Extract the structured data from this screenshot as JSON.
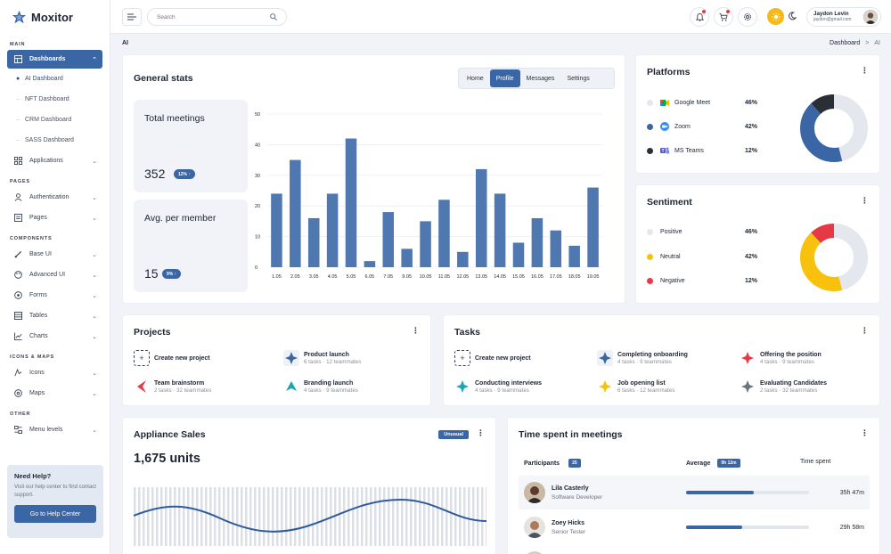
{
  "app": {
    "name": "Moxitor"
  },
  "sidebar": {
    "sections": {
      "main": "MAIN",
      "pages": "PAGES",
      "components": "COMPONENTS",
      "icons_maps": "ICONS & MAPS",
      "other": "OTHER"
    },
    "dashboards": "Dashboards",
    "sub": [
      "AI Dashboard",
      "NFT Dashboard",
      "CRM Dashboard",
      "SASS Dashboard"
    ],
    "applications": "Applications",
    "authentication": "Authentication",
    "pages": "Pages",
    "base_ui": "Base UI",
    "advanced_ui": "Advanced UI",
    "forms": "Forms",
    "tables": "Tables",
    "charts": "Charts",
    "icons": "Icons",
    "maps": "Maps",
    "menu_levels": "Menu levels",
    "help": {
      "title": "Need Help?",
      "text": "Visit our help center to find contact support.",
      "button": "Go to Help Center"
    }
  },
  "topbar": {
    "search_placeholder": "Search",
    "user_name": "Jaydon Levin",
    "user_email": "jaydon@gmail.com"
  },
  "breadcrumb": {
    "page": "AI",
    "parent": "Dashboard",
    "sep": ">",
    "current": "AI"
  },
  "general_stats": {
    "title": "General stats",
    "tabs": [
      "Home",
      "Profile",
      "Messages",
      "Settings"
    ],
    "active_tab": "Profile",
    "total_meetings_label": "Total meetings",
    "total_meetings_value": "352",
    "total_meetings_badge": "12% ↑",
    "avg_label": "Avg. per member",
    "avg_value": "15",
    "avg_badge": "9% ↑"
  },
  "chart_data": {
    "type": "bar",
    "categories": [
      "1.05",
      "2.05",
      "3.05",
      "4.05",
      "5.05",
      "6.05",
      "7.05",
      "9.05",
      "10.05",
      "11.05",
      "12.05",
      "13.05",
      "14.05",
      "15.05",
      "16.05",
      "17.05",
      "18.05",
      "19.05"
    ],
    "values": [
      24,
      35,
      16,
      24,
      42,
      2,
      18,
      6,
      15,
      22,
      5,
      32,
      24,
      8,
      16,
      12,
      7,
      26
    ],
    "yticks": [
      0,
      10,
      20,
      30,
      40,
      50
    ],
    "ylim": [
      0,
      50
    ],
    "color": "#4f78b0",
    "grid": true
  },
  "platforms": {
    "title": "Platforms",
    "items": [
      {
        "name": "Google Meet",
        "pct": "46%",
        "value": 46,
        "color": "#e4e7ed",
        "icon": "google-meet-icon"
      },
      {
        "name": "Zoom",
        "pct": "42%",
        "value": 42,
        "color": "#3a66a5",
        "icon": "zoom-icon"
      },
      {
        "name": "MS Teams",
        "pct": "12%",
        "value": 12,
        "color": "#2a2f36",
        "icon": "ms-teams-icon"
      }
    ]
  },
  "sentiment": {
    "title": "Sentiment",
    "items": [
      {
        "name": "Positive",
        "pct": "46%",
        "value": 46,
        "color": "#e4e7ed"
      },
      {
        "name": "Neutral",
        "pct": "42%",
        "value": 42,
        "color": "#f7c10d"
      },
      {
        "name": "Negative",
        "pct": "12%",
        "value": 12,
        "color": "#e53946"
      }
    ]
  },
  "projects": {
    "title": "Projects",
    "items": [
      {
        "name": "Create new project",
        "meta": ""
      },
      {
        "name": "Product launch",
        "meta": "6 tasks  ·  12 teammates"
      },
      {
        "name": "Team brainstorm",
        "meta": "2 tasks  ·  32 teammates"
      },
      {
        "name": "Branding launch",
        "meta": "4 tasks  ·  9 teammates"
      }
    ]
  },
  "tasks": {
    "title": "Tasks",
    "items": [
      {
        "name": "Create new project",
        "meta": ""
      },
      {
        "name": "Completing onboarding",
        "meta": "4 tasks  ·  9 teammates"
      },
      {
        "name": "Offering the position",
        "meta": "4 tasks  ·  9 teammates"
      },
      {
        "name": "Conducting interviews",
        "meta": "4 tasks  ·  9 teammates"
      },
      {
        "name": "Job opening list",
        "meta": "6 tasks  ·  12 teammates"
      },
      {
        "name": "Evaluating Candidates",
        "meta": "2 tasks  ·  32 teammates"
      }
    ]
  },
  "appliance": {
    "title": "Appliance Sales",
    "badge": "Unusual",
    "units": "1,675 units"
  },
  "time_spent": {
    "title": "Time spent in meetings",
    "participants_label": "Participants",
    "participants_count": "25",
    "average_label": "Average",
    "average_value": "9h 12m",
    "time_label": "Time spent",
    "rows": [
      {
        "name": "Lila Casterly",
        "role": "Software Developer",
        "time": "35h 47m",
        "progress": 0.55
      },
      {
        "name": "Zoey Hicks",
        "role": "Senior Tester",
        "time": "29h 58m",
        "progress": 0.46
      }
    ]
  }
}
